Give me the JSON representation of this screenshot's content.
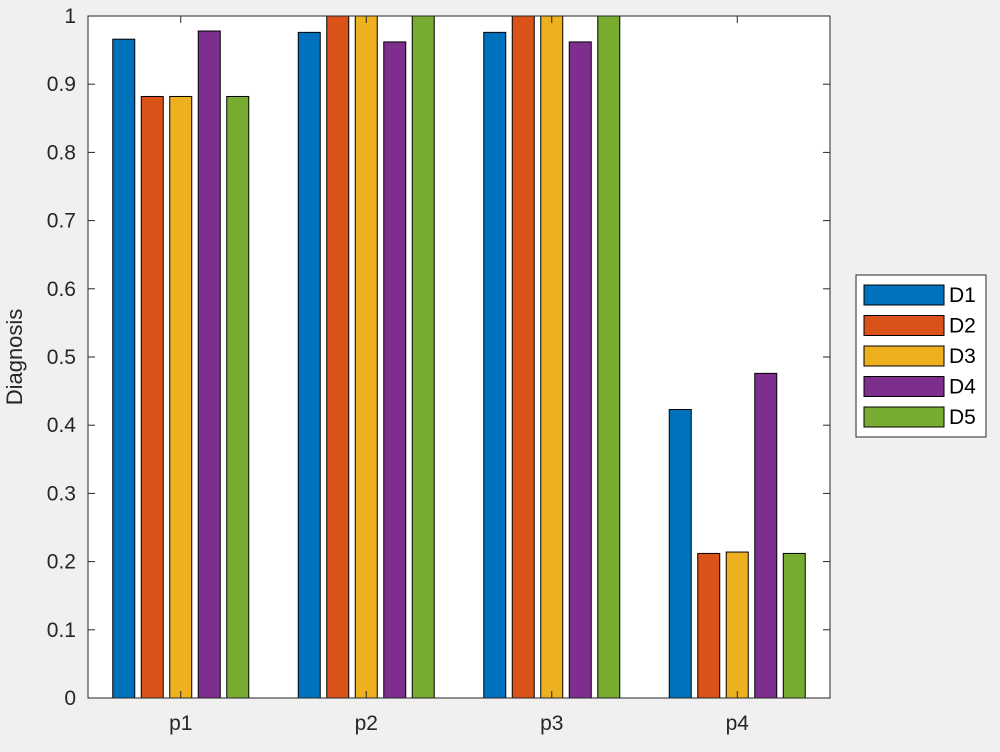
{
  "chart_data": {
    "type": "bar",
    "title": "",
    "xlabel": "",
    "ylabel": "Diagnosis",
    "ylim": [
      0,
      1
    ],
    "yticks": [
      "0",
      "0.1",
      "0.2",
      "0.3",
      "0.4",
      "0.5",
      "0.6",
      "0.7",
      "0.8",
      "0.9",
      "1"
    ],
    "categories": [
      "p1",
      "p2",
      "p3",
      "p4"
    ],
    "grid": false,
    "legend_position": "outside-right",
    "series": [
      {
        "name": "D1",
        "color": "#0072BD",
        "values": [
          0.966,
          0.976,
          0.976,
          0.423
        ]
      },
      {
        "name": "D2",
        "color": "#D95319",
        "values": [
          0.882,
          1.0,
          1.0,
          0.212
        ]
      },
      {
        "name": "D3",
        "color": "#EDB120",
        "values": [
          0.882,
          1.0,
          1.0,
          0.214
        ]
      },
      {
        "name": "D4",
        "color": "#7E2F8E",
        "values": [
          0.978,
          0.962,
          0.962,
          0.476
        ]
      },
      {
        "name": "D5",
        "color": "#77AC30",
        "values": [
          0.882,
          1.0,
          1.0,
          0.212
        ]
      }
    ]
  }
}
